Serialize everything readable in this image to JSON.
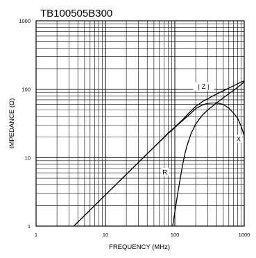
{
  "chart_data": {
    "type": "line",
    "title": "TB100505B300",
    "xlabel": "FREQUENCY (MHz)",
    "ylabel": "IMPEDANCE (Ω)",
    "x_scale": "log",
    "y_scale": "log",
    "xlim": [
      1,
      1000
    ],
    "ylim": [
      1,
      1000
    ],
    "grid": true,
    "x_ticks": [
      {
        "value": 1,
        "label": "1"
      },
      {
        "value": 10,
        "label": "10"
      },
      {
        "value": 100,
        "label": "100"
      },
      {
        "value": 1000,
        "label": "1000"
      }
    ],
    "y_ticks": [
      {
        "value": 1,
        "label": "1"
      },
      {
        "value": 10,
        "label": "10"
      },
      {
        "value": 100,
        "label": "100"
      },
      {
        "value": 1000,
        "label": "1000"
      }
    ],
    "series": [
      {
        "name": "| Z |",
        "label_at": [
          260,
          110
        ],
        "points": [
          [
            3.5,
            1
          ],
          [
            5,
            1.43
          ],
          [
            10,
            2.86
          ],
          [
            20,
            5.7
          ],
          [
            40,
            11.4
          ],
          [
            60,
            17.1
          ],
          [
            80,
            22.8
          ],
          [
            100,
            28
          ],
          [
            130,
            36
          ],
          [
            160,
            45
          ],
          [
            200,
            56
          ],
          [
            250,
            66
          ],
          [
            300,
            73
          ],
          [
            400,
            85
          ],
          [
            500,
            95
          ],
          [
            600,
            104
          ],
          [
            700,
            112
          ],
          [
            800,
            120
          ],
          [
            900,
            127
          ],
          [
            1000,
            132
          ]
        ]
      },
      {
        "name": "X",
        "label_at": [
          830,
          19
        ],
        "points": [
          [
            3.5,
            1
          ],
          [
            5,
            1.43
          ],
          [
            10,
            2.86
          ],
          [
            20,
            5.7
          ],
          [
            40,
            11.4
          ],
          [
            60,
            17
          ],
          [
            80,
            22.5
          ],
          [
            100,
            27.5
          ],
          [
            130,
            35
          ],
          [
            160,
            42
          ],
          [
            200,
            52
          ],
          [
            250,
            59
          ],
          [
            300,
            62
          ],
          [
            350,
            63
          ],
          [
            400,
            63
          ],
          [
            500,
            60
          ],
          [
            600,
            53
          ],
          [
            700,
            45
          ],
          [
            800,
            38
          ],
          [
            900,
            29
          ],
          [
            1000,
            21
          ]
        ]
      },
      {
        "name": "R",
        "label_at": [
          72,
          6.2
        ],
        "points": [
          [
            93,
            1
          ],
          [
            100,
            1.6
          ],
          [
            110,
            3
          ],
          [
            120,
            5
          ],
          [
            130,
            8
          ],
          [
            140,
            11.5
          ],
          [
            150,
            15
          ],
          [
            170,
            22
          ],
          [
            200,
            31
          ],
          [
            250,
            42
          ],
          [
            300,
            50
          ],
          [
            400,
            63
          ],
          [
            500,
            75
          ],
          [
            600,
            86
          ],
          [
            700,
            96
          ],
          [
            800,
            106
          ],
          [
            900,
            117
          ],
          [
            1000,
            128
          ]
        ]
      }
    ]
  }
}
